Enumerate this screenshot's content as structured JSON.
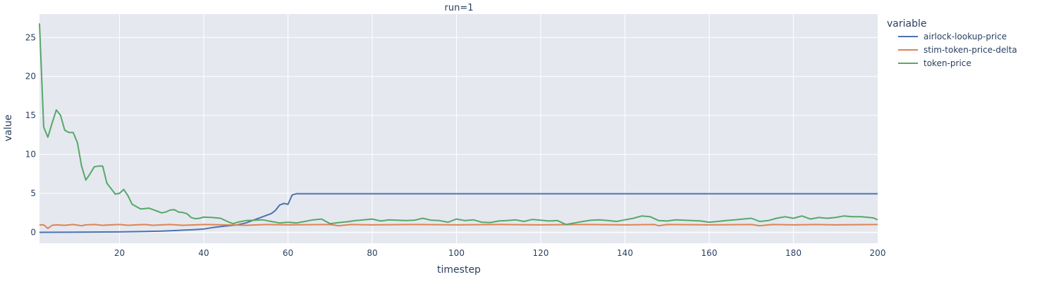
{
  "chart_data": {
    "type": "line",
    "title": "run=1",
    "xlabel": "timestep",
    "ylabel": "value",
    "xlim": [
      1,
      200
    ],
    "ylim": [
      -1.4,
      28.0
    ],
    "xticks": [
      20,
      40,
      60,
      80,
      100,
      120,
      140,
      160,
      180,
      200
    ],
    "yticks": [
      0,
      5,
      10,
      15,
      20,
      25
    ],
    "grid": true,
    "legend_title": "variable",
    "legend_position": "right",
    "series": [
      {
        "name": "airlock-lookup-price",
        "color": "#4c72b0",
        "x": [
          1,
          10,
          20,
          25,
          30,
          34,
          38,
          40,
          42,
          45,
          48,
          50,
          52,
          54,
          56,
          57,
          58,
          59,
          60,
          61,
          62,
          70,
          80,
          100,
          120,
          140,
          160,
          180,
          200
        ],
        "values": [
          0.0,
          0.02,
          0.05,
          0.1,
          0.15,
          0.25,
          0.35,
          0.42,
          0.6,
          0.8,
          0.95,
          1.2,
          1.6,
          2.0,
          2.4,
          2.8,
          3.5,
          3.7,
          3.6,
          4.8,
          4.95,
          4.95,
          4.95,
          4.95,
          4.95,
          4.95,
          4.95,
          4.95,
          4.95
        ]
      },
      {
        "name": "stim-token-price-delta",
        "color": "#dd8452",
        "x": [
          1,
          2,
          3,
          4,
          5,
          7,
          9,
          11,
          12,
          14,
          16,
          18,
          20,
          22,
          24,
          26,
          28,
          30,
          32,
          35,
          38,
          40,
          45,
          50,
          55,
          60,
          70,
          72,
          75,
          80,
          90,
          100,
          110,
          120,
          130,
          140,
          147,
          148,
          150,
          160,
          170,
          172,
          175,
          180,
          185,
          190,
          200
        ],
        "values": [
          0.95,
          0.95,
          0.5,
          0.9,
          0.95,
          0.9,
          1.0,
          0.85,
          0.95,
          1.0,
          0.9,
          0.95,
          1.0,
          0.9,
          0.95,
          1.0,
          0.9,
          0.95,
          1.0,
          0.9,
          0.95,
          1.0,
          0.95,
          0.9,
          1.0,
          0.95,
          1.0,
          0.85,
          1.0,
          0.95,
          1.0,
          0.95,
          1.0,
          0.95,
          1.0,
          0.95,
          1.0,
          0.85,
          1.0,
          0.95,
          1.0,
          0.85,
          1.0,
          0.95,
          1.0,
          0.95,
          1.0
        ]
      },
      {
        "name": "token-price",
        "color": "#55a868",
        "x": [
          1,
          2,
          3,
          4,
          5,
          6,
          7,
          8,
          9,
          10,
          11,
          12,
          13,
          14,
          15,
          16,
          17,
          18,
          19,
          20,
          21,
          22,
          23,
          24,
          25,
          26,
          27,
          28,
          29,
          30,
          31,
          32,
          33,
          34,
          35,
          36,
          37,
          38,
          39,
          40,
          42,
          44,
          46,
          47,
          48,
          50,
          52,
          54,
          56,
          58,
          60,
          62,
          64,
          66,
          68,
          70,
          72,
          74,
          76,
          78,
          80,
          82,
          84,
          86,
          88,
          90,
          92,
          94,
          96,
          98,
          100,
          102,
          104,
          106,
          108,
          110,
          112,
          114,
          116,
          118,
          120,
          122,
          124,
          126,
          128,
          130,
          132,
          134,
          136,
          138,
          140,
          142,
          144,
          146,
          148,
          150,
          152,
          154,
          156,
          158,
          160,
          162,
          164,
          166,
          168,
          170,
          172,
          174,
          176,
          178,
          180,
          182,
          184,
          186,
          188,
          190,
          192,
          194,
          196,
          198,
          199,
          200
        ],
        "values": [
          26.8,
          13.5,
          12.2,
          14.0,
          15.7,
          15.0,
          13.1,
          12.8,
          12.8,
          11.5,
          8.5,
          6.7,
          7.5,
          8.4,
          8.5,
          8.5,
          6.3,
          5.6,
          4.9,
          5.0,
          5.5,
          4.7,
          3.6,
          3.3,
          3.0,
          3.05,
          3.1,
          2.9,
          2.7,
          2.5,
          2.6,
          2.85,
          2.9,
          2.6,
          2.55,
          2.4,
          1.9,
          1.75,
          1.8,
          1.95,
          1.9,
          1.8,
          1.3,
          1.1,
          1.3,
          1.5,
          1.55,
          1.6,
          1.4,
          1.2,
          1.3,
          1.2,
          1.4,
          1.6,
          1.7,
          1.1,
          1.25,
          1.35,
          1.5,
          1.6,
          1.7,
          1.45,
          1.6,
          1.55,
          1.5,
          1.55,
          1.8,
          1.55,
          1.5,
          1.3,
          1.7,
          1.5,
          1.6,
          1.3,
          1.25,
          1.45,
          1.5,
          1.6,
          1.4,
          1.65,
          1.55,
          1.45,
          1.5,
          1.0,
          1.2,
          1.4,
          1.55,
          1.6,
          1.5,
          1.4,
          1.6,
          1.8,
          2.1,
          2.0,
          1.5,
          1.45,
          1.6,
          1.55,
          1.5,
          1.45,
          1.3,
          1.4,
          1.5,
          1.6,
          1.7,
          1.8,
          1.4,
          1.5,
          1.8,
          2.0,
          1.8,
          2.1,
          1.7,
          1.9,
          1.8,
          1.9,
          2.1,
          2.0,
          2.0,
          1.9,
          1.85,
          1.6
        ]
      }
    ]
  }
}
